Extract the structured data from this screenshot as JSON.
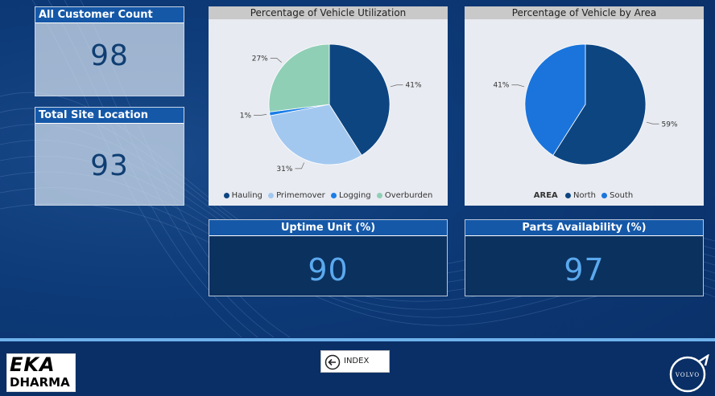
{
  "kpis_left": [
    {
      "label": "All Customer Count",
      "value": "98"
    },
    {
      "label": "Total Site Location",
      "value": "93"
    }
  ],
  "utilization_chart": {
    "title": "Percentage of Vehicle Utilization",
    "labels": [
      "41%",
      "31%",
      "1%",
      "27%"
    ],
    "legend": [
      "Hauling",
      "Primemover",
      "Logging",
      "Overburden"
    ]
  },
  "area_chart": {
    "title": "Percentage of Vehicle by Area",
    "labels": [
      "59%",
      "41%"
    ],
    "legend_title": "AREA",
    "legend": [
      "North",
      "South"
    ]
  },
  "kpis_bottom": [
    {
      "label": "Uptime Unit (%)",
      "value": "90"
    },
    {
      "label": "Parts Availability (%)",
      "value": "97"
    }
  ],
  "footer": {
    "logo_top": "EKA",
    "logo_bottom": "DHARMA",
    "index_label": "INDEX",
    "volvo_label": "VOLVO"
  },
  "chart_data": [
    {
      "type": "pie",
      "title": "Percentage of Vehicle Utilization",
      "categories": [
        "Hauling",
        "Primemover",
        "Logging",
        "Overburden"
      ],
      "values": [
        41,
        31,
        1,
        27
      ],
      "colors": [
        "#0d4581",
        "#a3c8f0",
        "#1a7de8",
        "#8fcfb6"
      ],
      "legend_placement": "bottom"
    },
    {
      "type": "pie",
      "title": "Percentage of Vehicle by Area",
      "categories": [
        "North",
        "South"
      ],
      "values": [
        59,
        41
      ],
      "colors": [
        "#0d4581",
        "#1a74dc"
      ],
      "legend_placement": "bottom"
    }
  ]
}
